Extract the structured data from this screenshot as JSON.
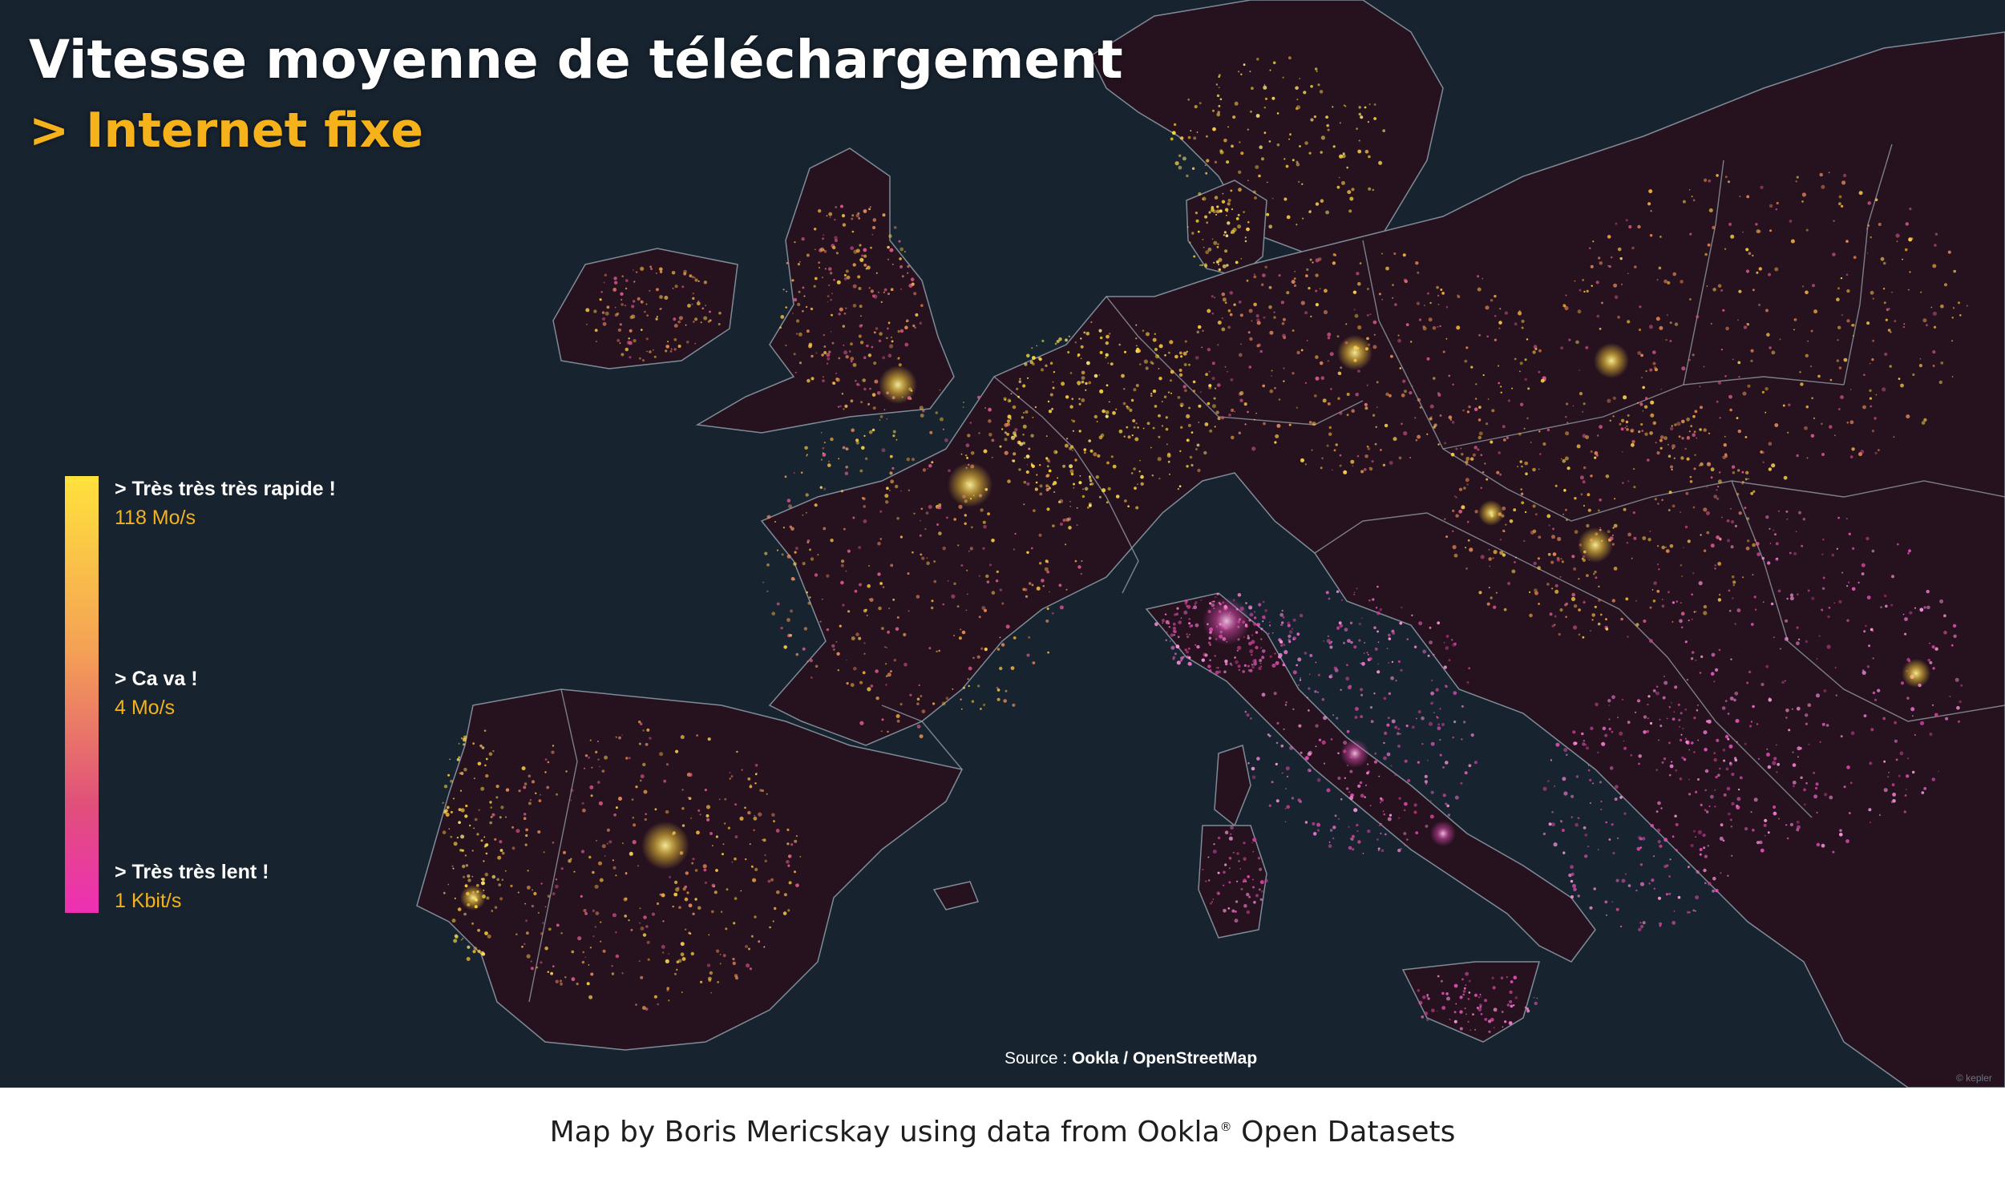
{
  "title": "Vitesse  moyenne de téléchargement",
  "subtitle": "> Internet fixe",
  "legend": {
    "items": [
      {
        "label": "> Très très  très rapide !",
        "value": "118  Mo/s"
      },
      {
        "label": "> Ca va !",
        "value": "4 Mo/s"
      },
      {
        "label": "> Très très lent !",
        "value": "1 Kbit/s"
      }
    ],
    "colors": {
      "fast": "#ffe23c",
      "medium": "#f4a055",
      "slow": "#ee2fb4"
    }
  },
  "source": {
    "prefix": "Source :",
    "provider": "Ookla",
    "separator": "/",
    "basemap": "OpenStreetMap"
  },
  "watermark": "© kepler",
  "caption": {
    "text": "Map by Boris Mericskay using data from Ookla",
    "mark": "®",
    "suffix": "Open Datasets"
  },
  "colors": {
    "ocean": "#17232f",
    "land": "#23101f",
    "title": "#ffffff",
    "accent": "#f6b21a",
    "border": "#8c97a3"
  }
}
